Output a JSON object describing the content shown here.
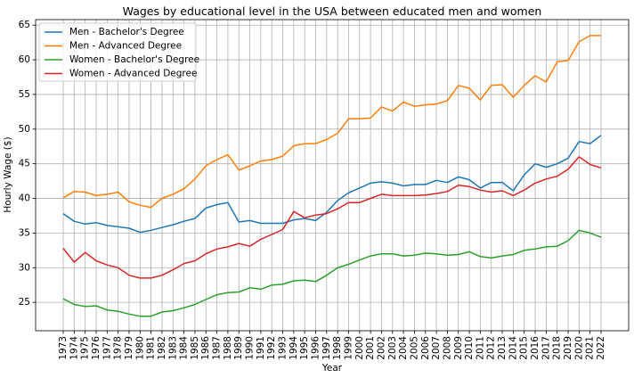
{
  "chart_data": {
    "type": "line",
    "title": "Wages by educational level in the USA between educated men and women",
    "xlabel": "Year",
    "ylabel": "Hourly Wage ($)",
    "x": [
      1973,
      1974,
      1975,
      1976,
      1977,
      1978,
      1979,
      1980,
      1981,
      1982,
      1983,
      1984,
      1985,
      1986,
      1987,
      1988,
      1989,
      1990,
      1991,
      1992,
      1993,
      1994,
      1995,
      1996,
      1997,
      1998,
      1999,
      2000,
      2001,
      2002,
      2003,
      2004,
      2005,
      2006,
      2007,
      2008,
      2009,
      2010,
      2011,
      2012,
      2013,
      2014,
      2015,
      2016,
      2017,
      2018,
      2019,
      2020,
      2021,
      2022
    ],
    "yticks": [
      25,
      30,
      35,
      40,
      45,
      50,
      55,
      60,
      65
    ],
    "ylim": [
      20.9,
      65.8
    ],
    "grid": true,
    "legend_position": "top-left",
    "series": [
      {
        "name": "Men - Bachelor's Degree",
        "color": "#1f77b4",
        "values": [
          37.8,
          36.7,
          36.3,
          36.5,
          36.1,
          35.9,
          35.7,
          35.1,
          35.4,
          35.8,
          36.2,
          36.7,
          37.1,
          38.6,
          39.1,
          39.4,
          36.6,
          36.8,
          36.4,
          36.4,
          36.4,
          36.9,
          37.1,
          36.8,
          38.0,
          39.7,
          40.8,
          41.5,
          42.2,
          42.4,
          42.2,
          41.8,
          42.0,
          42.0,
          42.6,
          42.3,
          43.1,
          42.7,
          41.5,
          42.3,
          42.3,
          41.1,
          43.4,
          45.0,
          44.5,
          45.0,
          45.8,
          48.2,
          47.9,
          49.1
        ]
      },
      {
        "name": "Men - Advanced Degree",
        "color": "#ff7f0e",
        "values": [
          40.1,
          41.0,
          40.9,
          40.4,
          40.6,
          40.9,
          39.5,
          39.0,
          38.7,
          40.0,
          40.6,
          41.4,
          42.8,
          44.7,
          45.6,
          46.3,
          44.1,
          44.7,
          45.4,
          45.6,
          46.1,
          47.6,
          47.9,
          47.9,
          48.5,
          49.4,
          51.5,
          51.5,
          51.6,
          53.2,
          52.6,
          53.9,
          53.3,
          53.5,
          53.6,
          54.1,
          56.3,
          55.9,
          54.2,
          56.3,
          56.4,
          54.6,
          56.3,
          57.7,
          56.8,
          59.7,
          59.9,
          62.6,
          63.5,
          63.5
        ]
      },
      {
        "name": "Women - Bachelor's Degree",
        "color": "#2ca02c",
        "values": [
          25.5,
          24.7,
          24.4,
          24.5,
          23.9,
          23.7,
          23.3,
          23.0,
          23.0,
          23.6,
          23.8,
          24.2,
          24.7,
          25.4,
          26.1,
          26.4,
          26.5,
          27.1,
          26.9,
          27.5,
          27.6,
          28.1,
          28.2,
          28.0,
          28.9,
          30.0,
          30.5,
          31.1,
          31.7,
          32.0,
          32.0,
          31.7,
          31.8,
          32.1,
          32.0,
          31.8,
          31.9,
          32.3,
          31.6,
          31.4,
          31.7,
          31.9,
          32.5,
          32.7,
          33.0,
          33.1,
          33.9,
          35.4,
          35.0,
          34.4
        ]
      },
      {
        "name": "Women - Advanced Degree",
        "color": "#d62728",
        "values": [
          32.8,
          30.8,
          32.2,
          31.0,
          30.4,
          30.0,
          28.9,
          28.5,
          28.5,
          28.9,
          29.7,
          30.6,
          31.0,
          32.0,
          32.7,
          33.0,
          33.5,
          33.1,
          34.1,
          34.8,
          35.5,
          38.1,
          37.2,
          37.6,
          37.8,
          38.5,
          39.4,
          39.4,
          40.0,
          40.6,
          40.4,
          40.4,
          40.4,
          40.5,
          40.7,
          41.0,
          41.9,
          41.7,
          41.2,
          40.9,
          41.1,
          40.4,
          41.2,
          42.2,
          42.8,
          43.2,
          44.2,
          46.0,
          44.9,
          44.4
        ]
      }
    ]
  }
}
